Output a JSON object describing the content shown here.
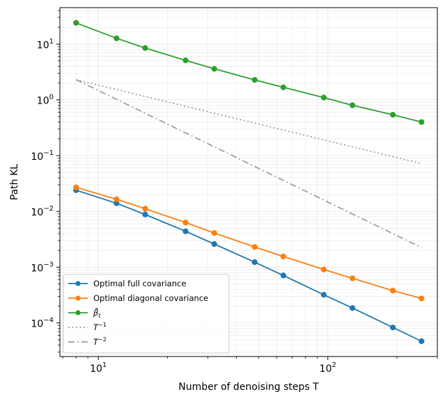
{
  "chart_data": {
    "type": "line",
    "xscale": "log",
    "yscale": "log",
    "xlabel": "Number of denoising steps T",
    "ylabel": "Path KL",
    "xlim": [
      6.8,
      300
    ],
    "ylim": [
      2.5e-05,
      45
    ],
    "grid": true,
    "legend_position": "lower-left",
    "x_ticks": [
      {
        "value": 10,
        "base": "10",
        "exp": "1"
      },
      {
        "value": 100,
        "base": "10",
        "exp": "2"
      }
    ],
    "y_ticks": [
      {
        "value": 0.0001,
        "base": "10",
        "exp": "−4"
      },
      {
        "value": 0.001,
        "base": "10",
        "exp": "−3"
      },
      {
        "value": 0.01,
        "base": "10",
        "exp": "−2"
      },
      {
        "value": 0.1,
        "base": "10",
        "exp": "−1"
      },
      {
        "value": 1,
        "base": "10",
        "exp": "0"
      },
      {
        "value": 10,
        "base": "10",
        "exp": "1"
      }
    ],
    "series": [
      {
        "name": "Optimal full covariance",
        "color": "#1f77b4",
        "style": "solid-marker",
        "x": [
          8,
          12,
          16,
          24,
          32,
          48,
          64,
          96,
          128,
          192,
          256
        ],
        "y": [
          0.024,
          0.014,
          0.0088,
          0.0044,
          0.0026,
          0.00123,
          0.00071,
          0.00032,
          0.000185,
          8.3e-05,
          4.7e-05
        ]
      },
      {
        "name": "Optimal diagonal covariance",
        "color": "#ff7f0e",
        "style": "solid-marker",
        "x": [
          8,
          12,
          16,
          24,
          32,
          48,
          64,
          96,
          128,
          192,
          256
        ],
        "y": [
          0.027,
          0.0165,
          0.0112,
          0.0063,
          0.0041,
          0.0023,
          0.00155,
          0.00091,
          0.00063,
          0.00038,
          0.000275
        ]
      },
      {
        "name": "β̃_t",
        "name_base": "β̃",
        "name_sub": "t",
        "color": "#2ca02c",
        "style": "solid-marker",
        "x": [
          8,
          12,
          16,
          24,
          32,
          48,
          64,
          96,
          128,
          192,
          256
        ],
        "y": [
          24,
          12.7,
          8.5,
          5.1,
          3.6,
          2.28,
          1.68,
          1.1,
          0.8,
          0.54,
          0.4
        ]
      },
      {
        "name": "T^{-1}",
        "name_base": "T",
        "name_sup": "−1",
        "color": "#999999",
        "style": "dotted",
        "x": [
          8,
          256
        ],
        "y": [
          2.3,
          0.0719
        ]
      },
      {
        "name": "T^{-2}",
        "name_base": "T",
        "name_sup": "−2",
        "color": "#999999",
        "style": "dashdot",
        "x": [
          8,
          256
        ],
        "y": [
          2.3,
          0.00225
        ]
      }
    ]
  }
}
